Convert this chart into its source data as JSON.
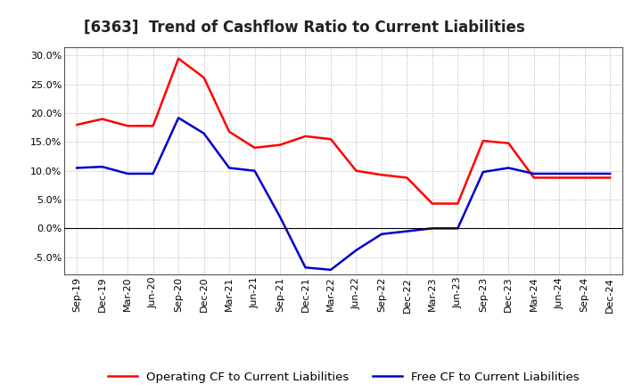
{
  "title": "[6363]  Trend of Cashflow Ratio to Current Liabilities",
  "x_labels": [
    "Sep-19",
    "Dec-19",
    "Mar-20",
    "Jun-20",
    "Sep-20",
    "Dec-20",
    "Mar-21",
    "Jun-21",
    "Sep-21",
    "Dec-21",
    "Mar-22",
    "Jun-22",
    "Sep-22",
    "Dec-22",
    "Mar-23",
    "Jun-23",
    "Sep-23",
    "Dec-23",
    "Mar-24",
    "Jun-24",
    "Sep-24",
    "Dec-24"
  ],
  "operating_cf": [
    0.18,
    0.19,
    0.178,
    0.178,
    0.295,
    0.262,
    0.168,
    0.14,
    0.145,
    0.16,
    0.155,
    0.1,
    0.093,
    0.088,
    0.043,
    0.043,
    0.152,
    0.148,
    0.088,
    0.088,
    0.088,
    0.088
  ],
  "free_cf": [
    0.105,
    0.107,
    0.095,
    0.095,
    0.192,
    0.165,
    0.105,
    0.1,
    0.02,
    -0.068,
    -0.072,
    -0.038,
    -0.01,
    -0.005,
    0.0,
    0.0,
    0.098,
    0.105,
    0.095,
    0.095,
    0.095,
    0.095
  ],
  "operating_cf_color": "#ff0000",
  "free_cf_color": "#0000cc",
  "ylim": [
    -0.08,
    0.315
  ],
  "yticks": [
    -0.05,
    0.0,
    0.05,
    0.1,
    0.15,
    0.2,
    0.25,
    0.3
  ],
  "background_color": "#ffffff",
  "grid_color": "#b0b0b0",
  "title_fontsize": 12,
  "legend_fontsize": 9.5,
  "axis_fontsize": 8
}
